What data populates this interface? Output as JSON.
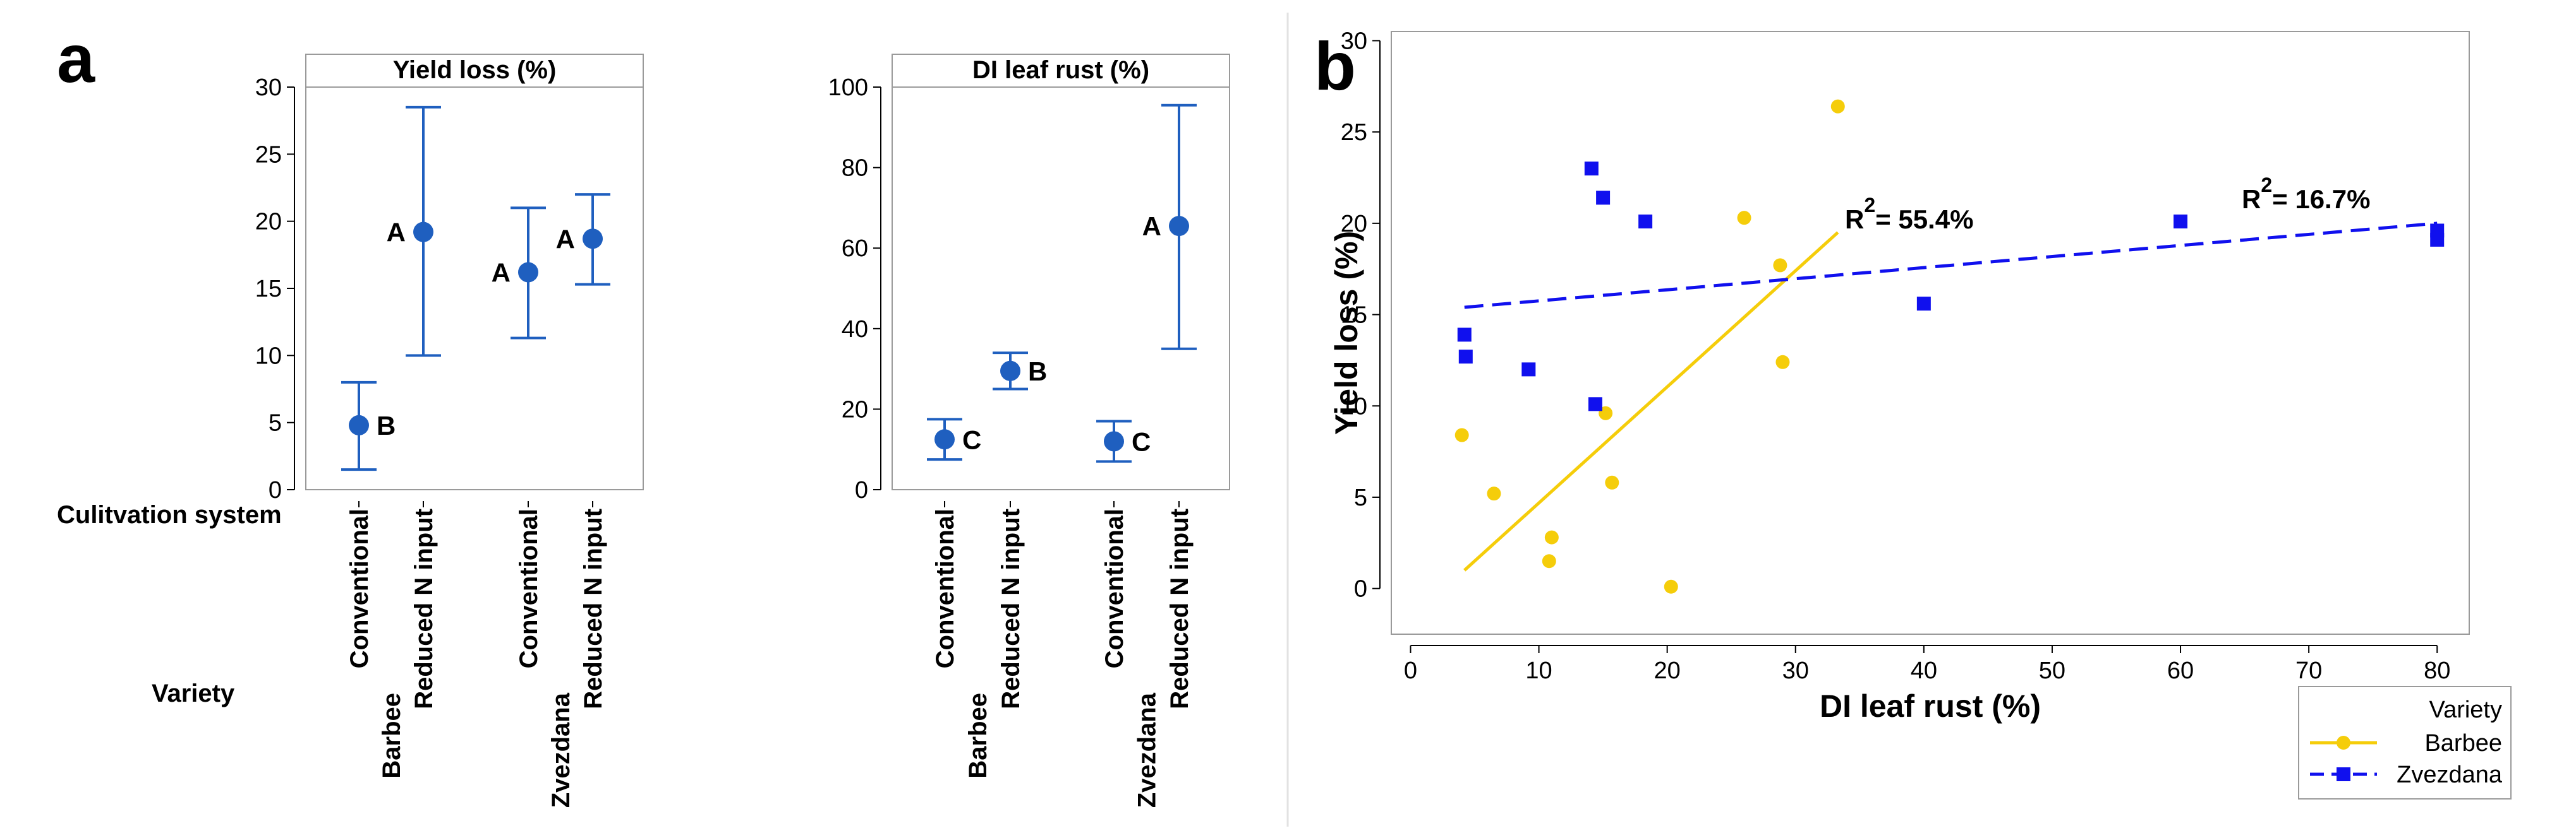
{
  "panel_a_label": "a",
  "panel_b_label": "b",
  "colors": {
    "interval": "#1f5fbf",
    "barbee": "#f5cd0a",
    "zvezdana": "#1010ee",
    "axis": "#000000",
    "frame": "#9a9a9a",
    "divider": "#e2e2e2"
  },
  "row_labels": {
    "cultivation": "Culitvation system",
    "variety": "Variety"
  },
  "chart_data": [
    {
      "type": "interval",
      "id": "yield_loss",
      "title": "Yield loss (%)",
      "ylim": [
        0,
        30
      ],
      "yticks": [
        0,
        5,
        10,
        15,
        20,
        25,
        30
      ],
      "ytick_labels": [
        "0",
        "5",
        "10",
        "15",
        "20",
        "25",
        "30"
      ],
      "points": [
        {
          "variety": "Barbee",
          "system": "Conventional",
          "mean": 4.8,
          "lower": 1.5,
          "upper": 8.0,
          "group": "B"
        },
        {
          "variety": "Barbee",
          "system": "Reduced N input",
          "mean": 19.2,
          "lower": 10.0,
          "upper": 28.5,
          "group": "A"
        },
        {
          "variety": "Zvezdana",
          "system": "Conventional",
          "mean": 16.2,
          "lower": 11.3,
          "upper": 21.0,
          "group": "A"
        },
        {
          "variety": "Zvezdana",
          "system": "Reduced N input",
          "mean": 18.7,
          "lower": 15.3,
          "upper": 22.0,
          "group": "A"
        }
      ]
    },
    {
      "type": "interval",
      "id": "di_leaf_rust",
      "title": "DI leaf rust (%)",
      "ylim": [
        0,
        100
      ],
      "yticks": [
        0,
        20,
        40,
        60,
        80,
        100
      ],
      "ytick_labels": [
        "0",
        "20",
        "40",
        "60",
        "80",
        "100"
      ],
      "points": [
        {
          "variety": "Barbee",
          "system": "Conventional",
          "mean": 12.5,
          "lower": 7.5,
          "upper": 17.5,
          "group": "C"
        },
        {
          "variety": "Barbee",
          "system": "Reduced N input",
          "mean": 29.5,
          "lower": 25.0,
          "upper": 34.0,
          "group": "B"
        },
        {
          "variety": "Zvezdana",
          "system": "Conventional",
          "mean": 12.0,
          "lower": 7.0,
          "upper": 17.0,
          "group": "C"
        },
        {
          "variety": "Zvezdana",
          "system": "Reduced N input",
          "mean": 65.5,
          "lower": 35.0,
          "upper": 95.5,
          "group": "A"
        }
      ]
    },
    {
      "type": "scatter",
      "id": "regression",
      "xlabel": "DI leaf rust (%)",
      "ylabel": "Yield loss (%)",
      "xlim": [
        -1.5,
        82.5
      ],
      "ylim": [
        -2.5,
        30.5
      ],
      "xticks": [
        0,
        10,
        20,
        30,
        40,
        50,
        60,
        70,
        80
      ],
      "xtick_labels": [
        "0",
        "10",
        "20",
        "30",
        "40",
        "50",
        "60",
        "70",
        "80"
      ],
      "yticks": [
        0,
        5,
        10,
        15,
        20,
        25,
        30
      ],
      "ytick_labels": [
        "0",
        "5",
        "10",
        "15",
        "20",
        "25",
        "30"
      ],
      "legend_title": "Variety",
      "series": [
        {
          "name": "Barbee",
          "marker": "circle",
          "line_style": "solid",
          "r2_prefix": "R",
          "r2_sup": "2",
          "r2_value": "= 55.4%",
          "fit_line": [
            [
              4.2,
              1.0
            ],
            [
              33.3,
              19.5
            ]
          ],
          "points": [
            [
              4.0,
              8.4
            ],
            [
              6.5,
              5.2
            ],
            [
              10.8,
              1.5
            ],
            [
              11.0,
              2.8
            ],
            [
              15.2,
              9.6
            ],
            [
              15.7,
              5.8
            ],
            [
              20.3,
              0.1
            ],
            [
              26.0,
              20.3
            ],
            [
              28.8,
              17.7
            ],
            [
              29.0,
              12.4
            ],
            [
              33.3,
              26.4
            ]
          ]
        },
        {
          "name": "Zvezdana",
          "marker": "square",
          "line_style": "dashed",
          "r2_prefix": "R",
          "r2_sup": "2",
          "r2_value": "= 16.7%",
          "fit_line": [
            [
              4.2,
              15.4
            ],
            [
              80.0,
              20.0
            ]
          ],
          "points": [
            [
              4.2,
              13.9
            ],
            [
              4.3,
              12.7
            ],
            [
              9.2,
              12.0
            ],
            [
              14.1,
              23.0
            ],
            [
              14.4,
              10.1
            ],
            [
              15.0,
              21.4
            ],
            [
              18.3,
              20.1
            ],
            [
              40.0,
              15.6
            ],
            [
              60.0,
              20.1
            ],
            [
              80.0,
              19.6
            ],
            [
              80.0,
              19.1
            ]
          ]
        }
      ]
    }
  ]
}
